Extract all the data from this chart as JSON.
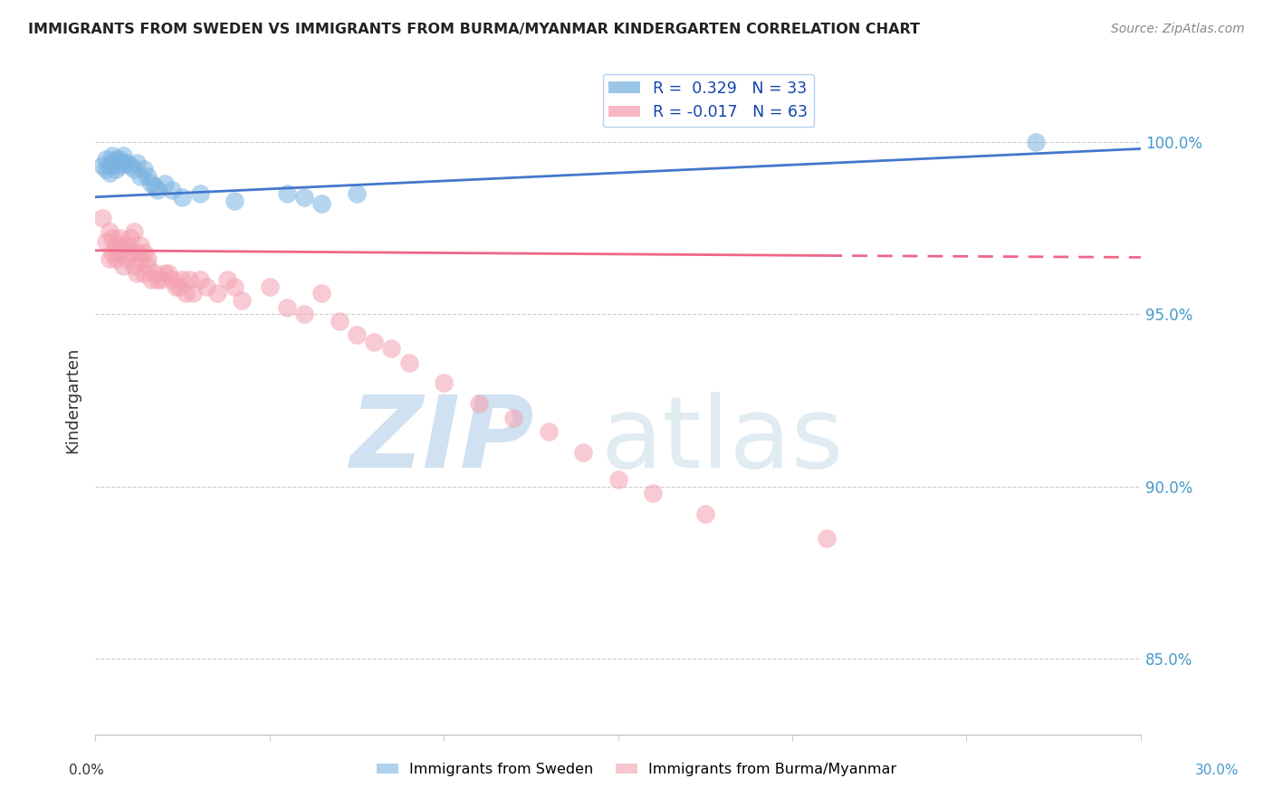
{
  "title": "IMMIGRANTS FROM SWEDEN VS IMMIGRANTS FROM BURMA/MYANMAR KINDERGARTEN CORRELATION CHART",
  "source": "Source: ZipAtlas.com",
  "ylabel": "Kindergarten",
  "y_ticks": [
    0.85,
    0.9,
    0.95,
    1.0
  ],
  "y_tick_labels": [
    "85.0%",
    "90.0%",
    "95.0%",
    "100.0%"
  ],
  "xlim": [
    0.0,
    0.3
  ],
  "ylim": [
    0.828,
    1.022
  ],
  "sweden_R": 0.329,
  "sweden_N": 33,
  "burma_R": -0.017,
  "burma_N": 63,
  "sweden_color": "#7BB3E0",
  "burma_color": "#F4A0B0",
  "sweden_line_color": "#4477CC",
  "burma_line_color": "#EE6688",
  "sweden_x": [
    0.002,
    0.003,
    0.003,
    0.004,
    0.004,
    0.005,
    0.005,
    0.006,
    0.006,
    0.007,
    0.007,
    0.008,
    0.008,
    0.009,
    0.01,
    0.011,
    0.012,
    0.013,
    0.014,
    0.015,
    0.016,
    0.017,
    0.018,
    0.02,
    0.022,
    0.025,
    0.03,
    0.04,
    0.055,
    0.06,
    0.065,
    0.075,
    0.27
  ],
  "sweden_y": [
    0.993,
    0.992,
    0.995,
    0.991,
    0.993,
    0.994,
    0.996,
    0.992,
    0.995,
    0.993,
    0.995,
    0.994,
    0.996,
    0.994,
    0.993,
    0.992,
    0.994,
    0.99,
    0.992,
    0.99,
    0.988,
    0.987,
    0.986,
    0.988,
    0.986,
    0.984,
    0.985,
    0.983,
    0.985,
    0.984,
    0.982,
    0.985,
    1.0
  ],
  "burma_x": [
    0.002,
    0.003,
    0.004,
    0.004,
    0.005,
    0.005,
    0.006,
    0.006,
    0.007,
    0.007,
    0.008,
    0.008,
    0.009,
    0.009,
    0.01,
    0.01,
    0.011,
    0.011,
    0.012,
    0.012,
    0.013,
    0.013,
    0.014,
    0.014,
    0.015,
    0.015,
    0.016,
    0.017,
    0.018,
    0.019,
    0.02,
    0.021,
    0.022,
    0.023,
    0.024,
    0.025,
    0.026,
    0.027,
    0.028,
    0.03,
    0.032,
    0.035,
    0.038,
    0.04,
    0.042,
    0.05,
    0.055,
    0.06,
    0.065,
    0.07,
    0.075,
    0.08,
    0.085,
    0.09,
    0.1,
    0.11,
    0.12,
    0.13,
    0.14,
    0.15,
    0.16,
    0.175,
    0.21
  ],
  "burma_y": [
    0.978,
    0.971,
    0.966,
    0.974,
    0.968,
    0.972,
    0.966,
    0.97,
    0.972,
    0.968,
    0.964,
    0.97,
    0.966,
    0.97,
    0.972,
    0.968,
    0.964,
    0.974,
    0.962,
    0.968,
    0.97,
    0.966,
    0.962,
    0.968,
    0.964,
    0.966,
    0.96,
    0.962,
    0.96,
    0.96,
    0.962,
    0.962,
    0.96,
    0.958,
    0.958,
    0.96,
    0.956,
    0.96,
    0.956,
    0.96,
    0.958,
    0.956,
    0.96,
    0.958,
    0.954,
    0.958,
    0.952,
    0.95,
    0.956,
    0.948,
    0.944,
    0.942,
    0.94,
    0.936,
    0.93,
    0.924,
    0.92,
    0.916,
    0.91,
    0.902,
    0.898,
    0.892,
    0.885
  ],
  "burma_line_start_x": 0.0,
  "burma_line_end_solid_x": 0.21,
  "burma_line_end_x": 0.3,
  "burma_line_y_at_0": 0.9685,
  "burma_line_y_at_021": 0.967,
  "burma_line_y_at_030": 0.9665,
  "sweden_line_y_at_0": 0.984,
  "sweden_line_y_at_030": 0.998
}
